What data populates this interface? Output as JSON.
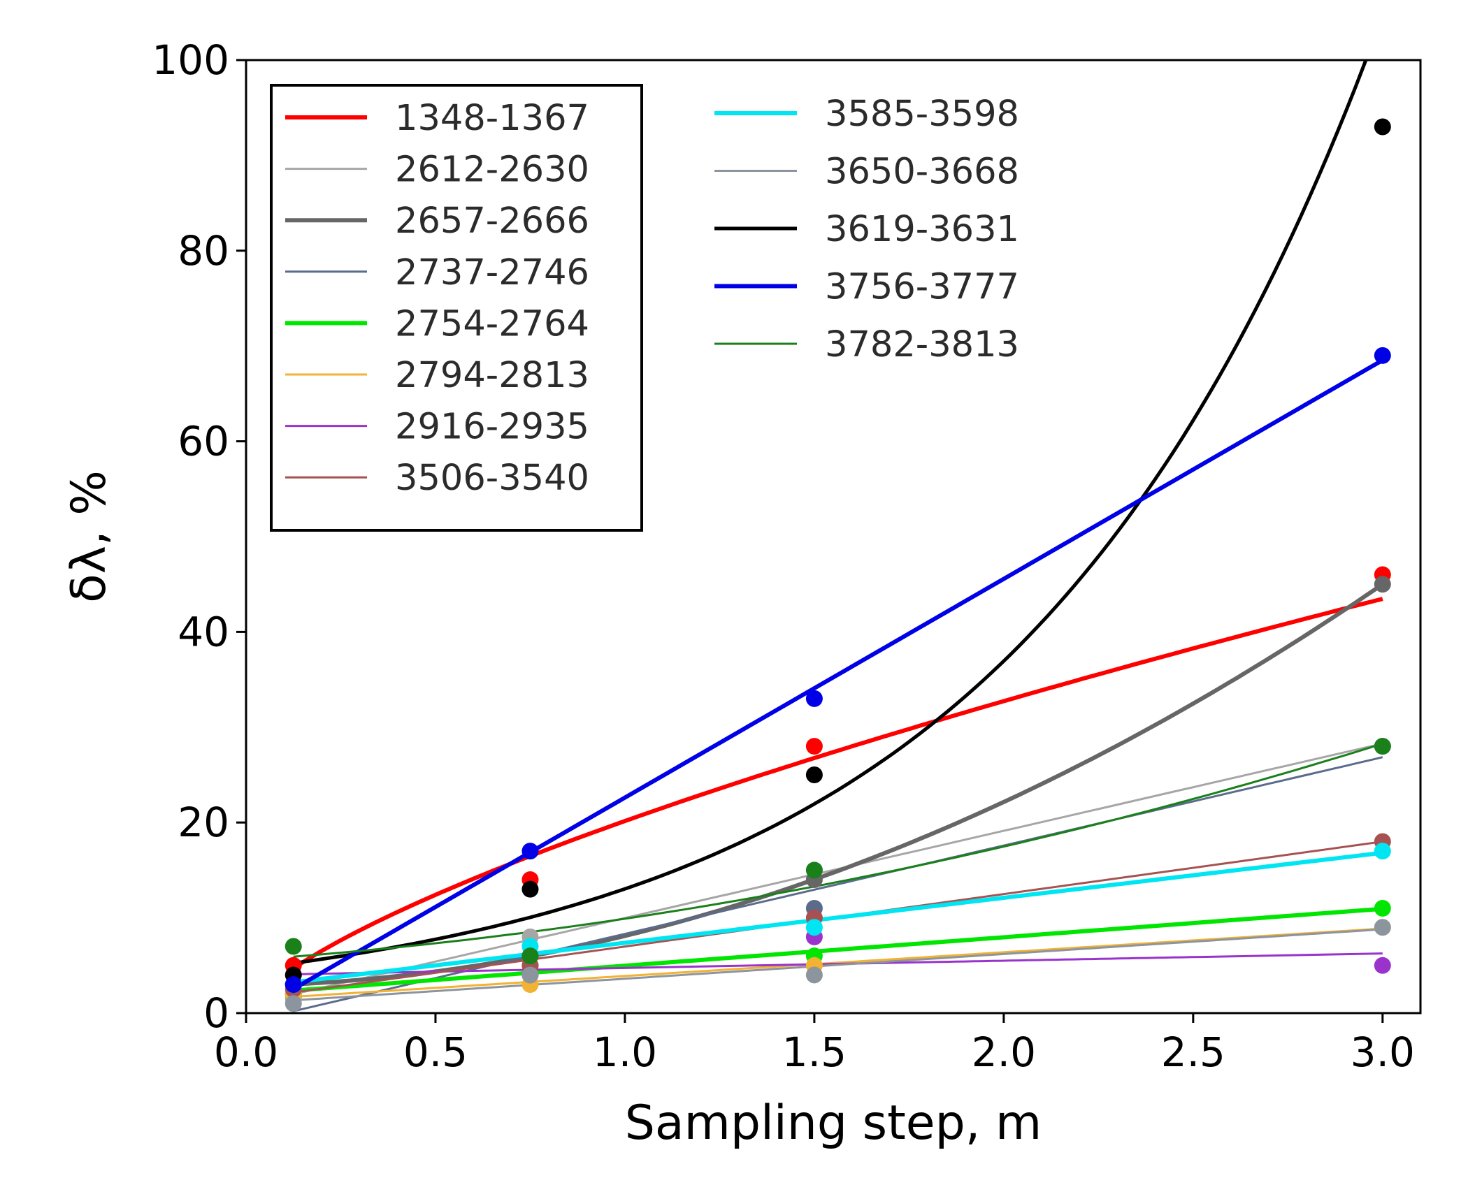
{
  "chart_data": {
    "type": "scatter",
    "title": "",
    "xlabel": "Sampling step, m",
    "ylabel": "δλ, %",
    "xlim": [
      0.0,
      3.1
    ],
    "ylim": [
      0,
      100
    ],
    "xticks": [
      "0.0",
      "0.5",
      "1.0",
      "1.5",
      "2.0",
      "2.5",
      "3.0"
    ],
    "yticks": [
      "0",
      "20",
      "40",
      "60",
      "80",
      "100"
    ],
    "x": [
      0.125,
      0.75,
      1.5,
      3.0
    ],
    "grid": false,
    "legend_placement": "top-left (two columns)",
    "series": [
      {
        "name": "1348-1367",
        "color": "#ff0000",
        "fit": "power",
        "values": [
          5,
          14,
          28,
          46
        ]
      },
      {
        "name": "2612-2630",
        "color": "#a6a6a6",
        "fit": "linear",
        "values": [
          1.5,
          8,
          15,
          28
        ]
      },
      {
        "name": "2657-2666",
        "color": "#666666",
        "fit": "quadratic",
        "values": [
          3,
          6,
          14,
          45
        ]
      },
      {
        "name": "2737-2746",
        "color": "#5a6b8c",
        "fit": "linear",
        "values": [
          2,
          5,
          11,
          28
        ]
      },
      {
        "name": "2754-2764",
        "color": "#00e600",
        "fit": "linear",
        "values": [
          2,
          5,
          6,
          11
        ]
      },
      {
        "name": "2794-2813",
        "color": "#f2b233",
        "fit": "linear",
        "values": [
          2,
          3,
          5,
          9
        ]
      },
      {
        "name": "2916-2935",
        "color": "#9933cc",
        "fit": "linear",
        "values": [
          3,
          4,
          8,
          5
        ]
      },
      {
        "name": "3506-3540",
        "color": "#a65252",
        "fit": "linear",
        "values": [
          2.5,
          5,
          10,
          18
        ]
      },
      {
        "name": "3585-3598",
        "color": "#00e5f2",
        "fit": "linear",
        "values": [
          3,
          7,
          9,
          17
        ]
      },
      {
        "name": "3650-3668",
        "color": "#8c959e",
        "fit": "linear",
        "values": [
          1,
          4,
          4,
          9
        ]
      },
      {
        "name": "3619-3631",
        "color": "#000000",
        "fit": "exponential",
        "values": [
          4,
          13,
          25,
          93
        ]
      },
      {
        "name": "3756-3777",
        "color": "#0000e6",
        "fit": "linear",
        "values": [
          3,
          17,
          33,
          69
        ]
      },
      {
        "name": "3782-3813",
        "color": "#1a801a",
        "fit": "quadratic",
        "values": [
          7,
          6,
          15,
          28
        ]
      }
    ]
  }
}
